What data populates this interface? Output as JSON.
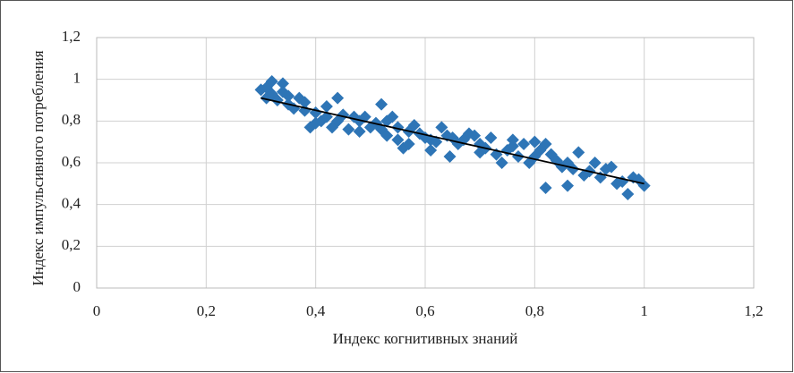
{
  "chart_data": {
    "type": "scatter",
    "x_label": "Индекс когнитивных знаний",
    "y_label": "Индекс импульсивного потребления",
    "color": "#2e75b6",
    "grid": true,
    "xlim": [
      0,
      1.2
    ],
    "ylim": [
      0,
      1.2
    ],
    "xticks": [
      0,
      {
        "value": 0.2,
        "label": "0,2"
      },
      {
        "value": 0.4,
        "label": "0,4"
      },
      {
        "value": 0.6,
        "label": "0,6"
      },
      {
        "value": 0.8,
        "label": "0,8"
      },
      1,
      {
        "value": 1.2,
        "label": "1,2"
      }
    ],
    "yticks": [
      0,
      {
        "value": 0.2,
        "label": "0,2"
      },
      {
        "value": 0.4,
        "label": "0,4"
      },
      {
        "value": 0.6,
        "label": "0,6"
      },
      {
        "value": 0.8,
        "label": "0,8"
      },
      1,
      {
        "value": 1.2,
        "label": "1,2"
      }
    ],
    "x": [
      0.3,
      0.31,
      0.31,
      0.32,
      0.32,
      0.33,
      0.34,
      0.34,
      0.35,
      0.35,
      0.36,
      0.37,
      0.38,
      0.38,
      0.39,
      0.4,
      0.4,
      0.41,
      0.42,
      0.42,
      0.43,
      0.44,
      0.44,
      0.45,
      0.46,
      0.47,
      0.48,
      0.48,
      0.49,
      0.5,
      0.51,
      0.52,
      0.52,
      0.53,
      0.53,
      0.54,
      0.55,
      0.55,
      0.56,
      0.57,
      0.57,
      0.58,
      0.59,
      0.6,
      0.61,
      0.61,
      0.62,
      0.63,
      0.64,
      0.645,
      0.65,
      0.66,
      0.67,
      0.68,
      0.69,
      0.7,
      0.7,
      0.71,
      0.72,
      0.73,
      0.74,
      0.75,
      0.76,
      0.76,
      0.77,
      0.78,
      0.79,
      0.8,
      0.8,
      0.81,
      0.82,
      0.82,
      0.83,
      0.84,
      0.85,
      0.86,
      0.86,
      0.87,
      0.88,
      0.89,
      0.9,
      0.91,
      0.92,
      0.93,
      0.94,
      0.95,
      0.96,
      0.97,
      0.98,
      0.99,
      1.0
    ],
    "values": [
      0.95,
      0.91,
      0.96,
      0.99,
      0.93,
      0.9,
      0.98,
      0.94,
      0.88,
      0.92,
      0.86,
      0.91,
      0.85,
      0.89,
      0.77,
      0.79,
      0.84,
      0.8,
      0.87,
      0.82,
      0.77,
      0.91,
      0.8,
      0.83,
      0.76,
      0.82,
      0.75,
      0.8,
      0.82,
      0.77,
      0.79,
      0.88,
      0.76,
      0.8,
      0.73,
      0.82,
      0.71,
      0.77,
      0.67,
      0.75,
      0.69,
      0.78,
      0.74,
      0.72,
      0.66,
      0.71,
      0.7,
      0.77,
      0.73,
      0.63,
      0.72,
      0.69,
      0.71,
      0.74,
      0.73,
      0.65,
      0.69,
      0.67,
      0.72,
      0.64,
      0.6,
      0.66,
      0.71,
      0.68,
      0.63,
      0.69,
      0.6,
      0.63,
      0.7,
      0.66,
      0.69,
      0.48,
      0.64,
      0.61,
      0.58,
      0.49,
      0.6,
      0.57,
      0.65,
      0.54,
      0.56,
      0.6,
      0.53,
      0.57,
      0.58,
      0.5,
      0.51,
      0.45,
      0.53,
      0.52,
      0.49
    ],
    "trendline": {
      "x": [
        0.3,
        1.0
      ],
      "values": [
        0.91,
        0.5
      ],
      "color": "#000000"
    }
  }
}
